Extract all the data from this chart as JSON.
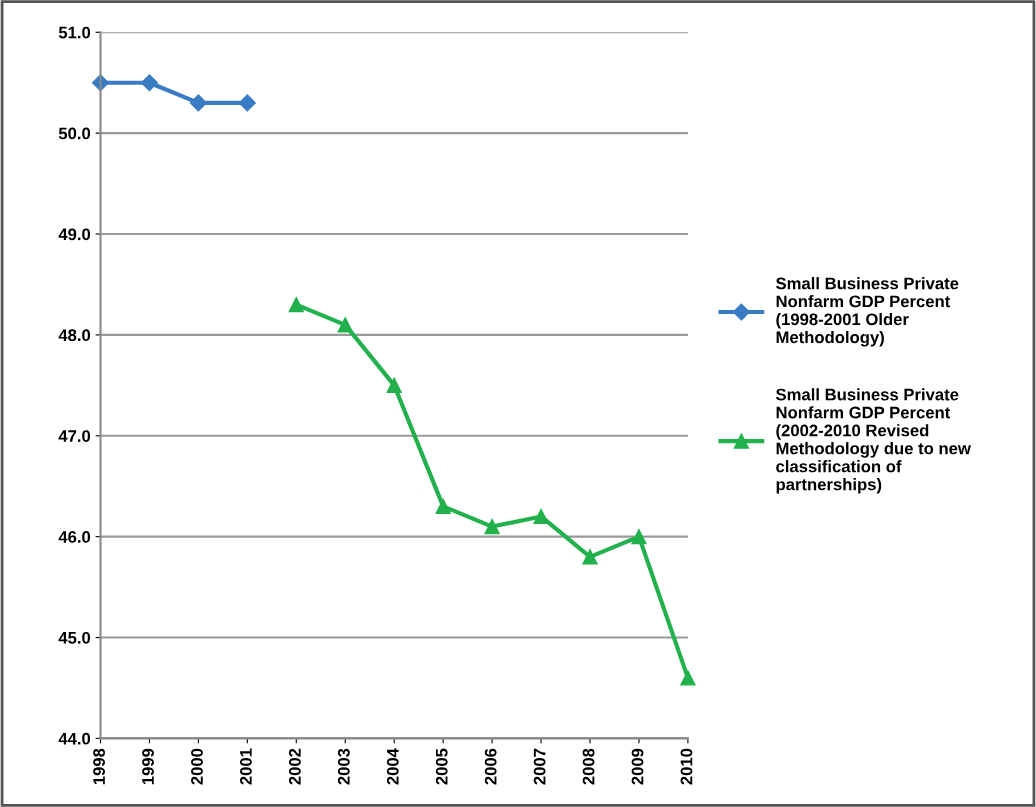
{
  "chart_data": {
    "type": "line",
    "categories": [
      "1998",
      "1999",
      "2000",
      "2001",
      "2002",
      "2003",
      "2004",
      "2005",
      "2006",
      "2007",
      "2008",
      "2009",
      "2010"
    ],
    "series": [
      {
        "name": "Small Business Private Nonfarm GDP Percent (1998-2001 Older Methodology)",
        "color": "#3a7cc4",
        "marker": "diamond",
        "values": [
          50.5,
          50.5,
          50.3,
          50.3,
          null,
          null,
          null,
          null,
          null,
          null,
          null,
          null,
          null
        ]
      },
      {
        "name": "Small Business Private Nonfarm GDP Percent (2002-2010 Revised Methodology due to new classification of partnerships)",
        "color": "#22b14c",
        "marker": "triangle",
        "values": [
          null,
          null,
          null,
          null,
          48.3,
          48.1,
          47.5,
          46.3,
          46.1,
          46.2,
          45.8,
          46.0,
          44.6
        ]
      }
    ],
    "ylim": [
      44,
      51
    ],
    "yticks": [
      {
        "value": 44,
        "label": "44.0"
      },
      {
        "value": 45,
        "label": "45.0"
      },
      {
        "value": 46,
        "label": "46.0"
      },
      {
        "value": 47,
        "label": "47.0"
      },
      {
        "value": 48,
        "label": "48.0"
      },
      {
        "value": 49,
        "label": "49.0"
      },
      {
        "value": 50,
        "label": "50.0"
      },
      {
        "value": 51,
        "label": "51.0"
      }
    ],
    "grid": "y",
    "legend": "right"
  }
}
